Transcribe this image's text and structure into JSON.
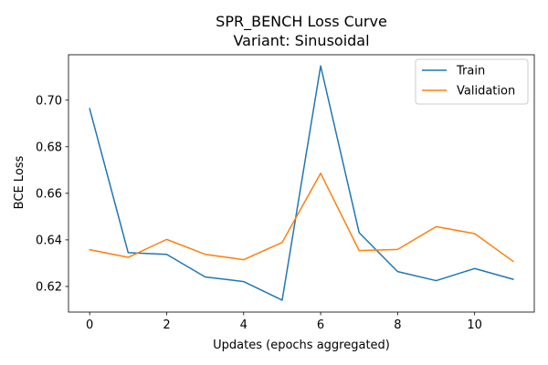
{
  "chart_data": {
    "type": "line",
    "title": "SPR_BENCH Loss Curve",
    "subtitle": "Variant: Sinusoidal",
    "xlabel": "Updates (epochs aggregated)",
    "ylabel": "BCE Loss",
    "x": [
      0,
      1,
      2,
      3,
      4,
      5,
      6,
      7,
      8,
      9,
      10,
      11
    ],
    "xlim": [
      -0.55,
      11.55
    ],
    "ylim": [
      0.609,
      0.7195
    ],
    "xticks": [
      0,
      2,
      4,
      6,
      8,
      10
    ],
    "yticks": [
      0.62,
      0.64,
      0.66,
      0.68,
      0.7
    ],
    "xtick_labels": [
      "0",
      "2",
      "4",
      "6",
      "8",
      "10"
    ],
    "ytick_labels": [
      "0.62",
      "0.64",
      "0.66",
      "0.68",
      "0.70"
    ],
    "grid": false,
    "legend_position": "top-right",
    "series": [
      {
        "name": "Train",
        "color": "#1f77b4",
        "values": [
          0.6963,
          0.6345,
          0.6338,
          0.6241,
          0.6221,
          0.6141,
          0.7147,
          0.6431,
          0.6264,
          0.6225,
          0.6277,
          0.6231
        ]
      },
      {
        "name": "Validation",
        "color": "#ff7f0e",
        "values": [
          0.6358,
          0.6325,
          0.6402,
          0.6338,
          0.6315,
          0.6389,
          0.6686,
          0.6354,
          0.6359,
          0.6457,
          0.6427,
          0.6308
        ]
      }
    ]
  }
}
